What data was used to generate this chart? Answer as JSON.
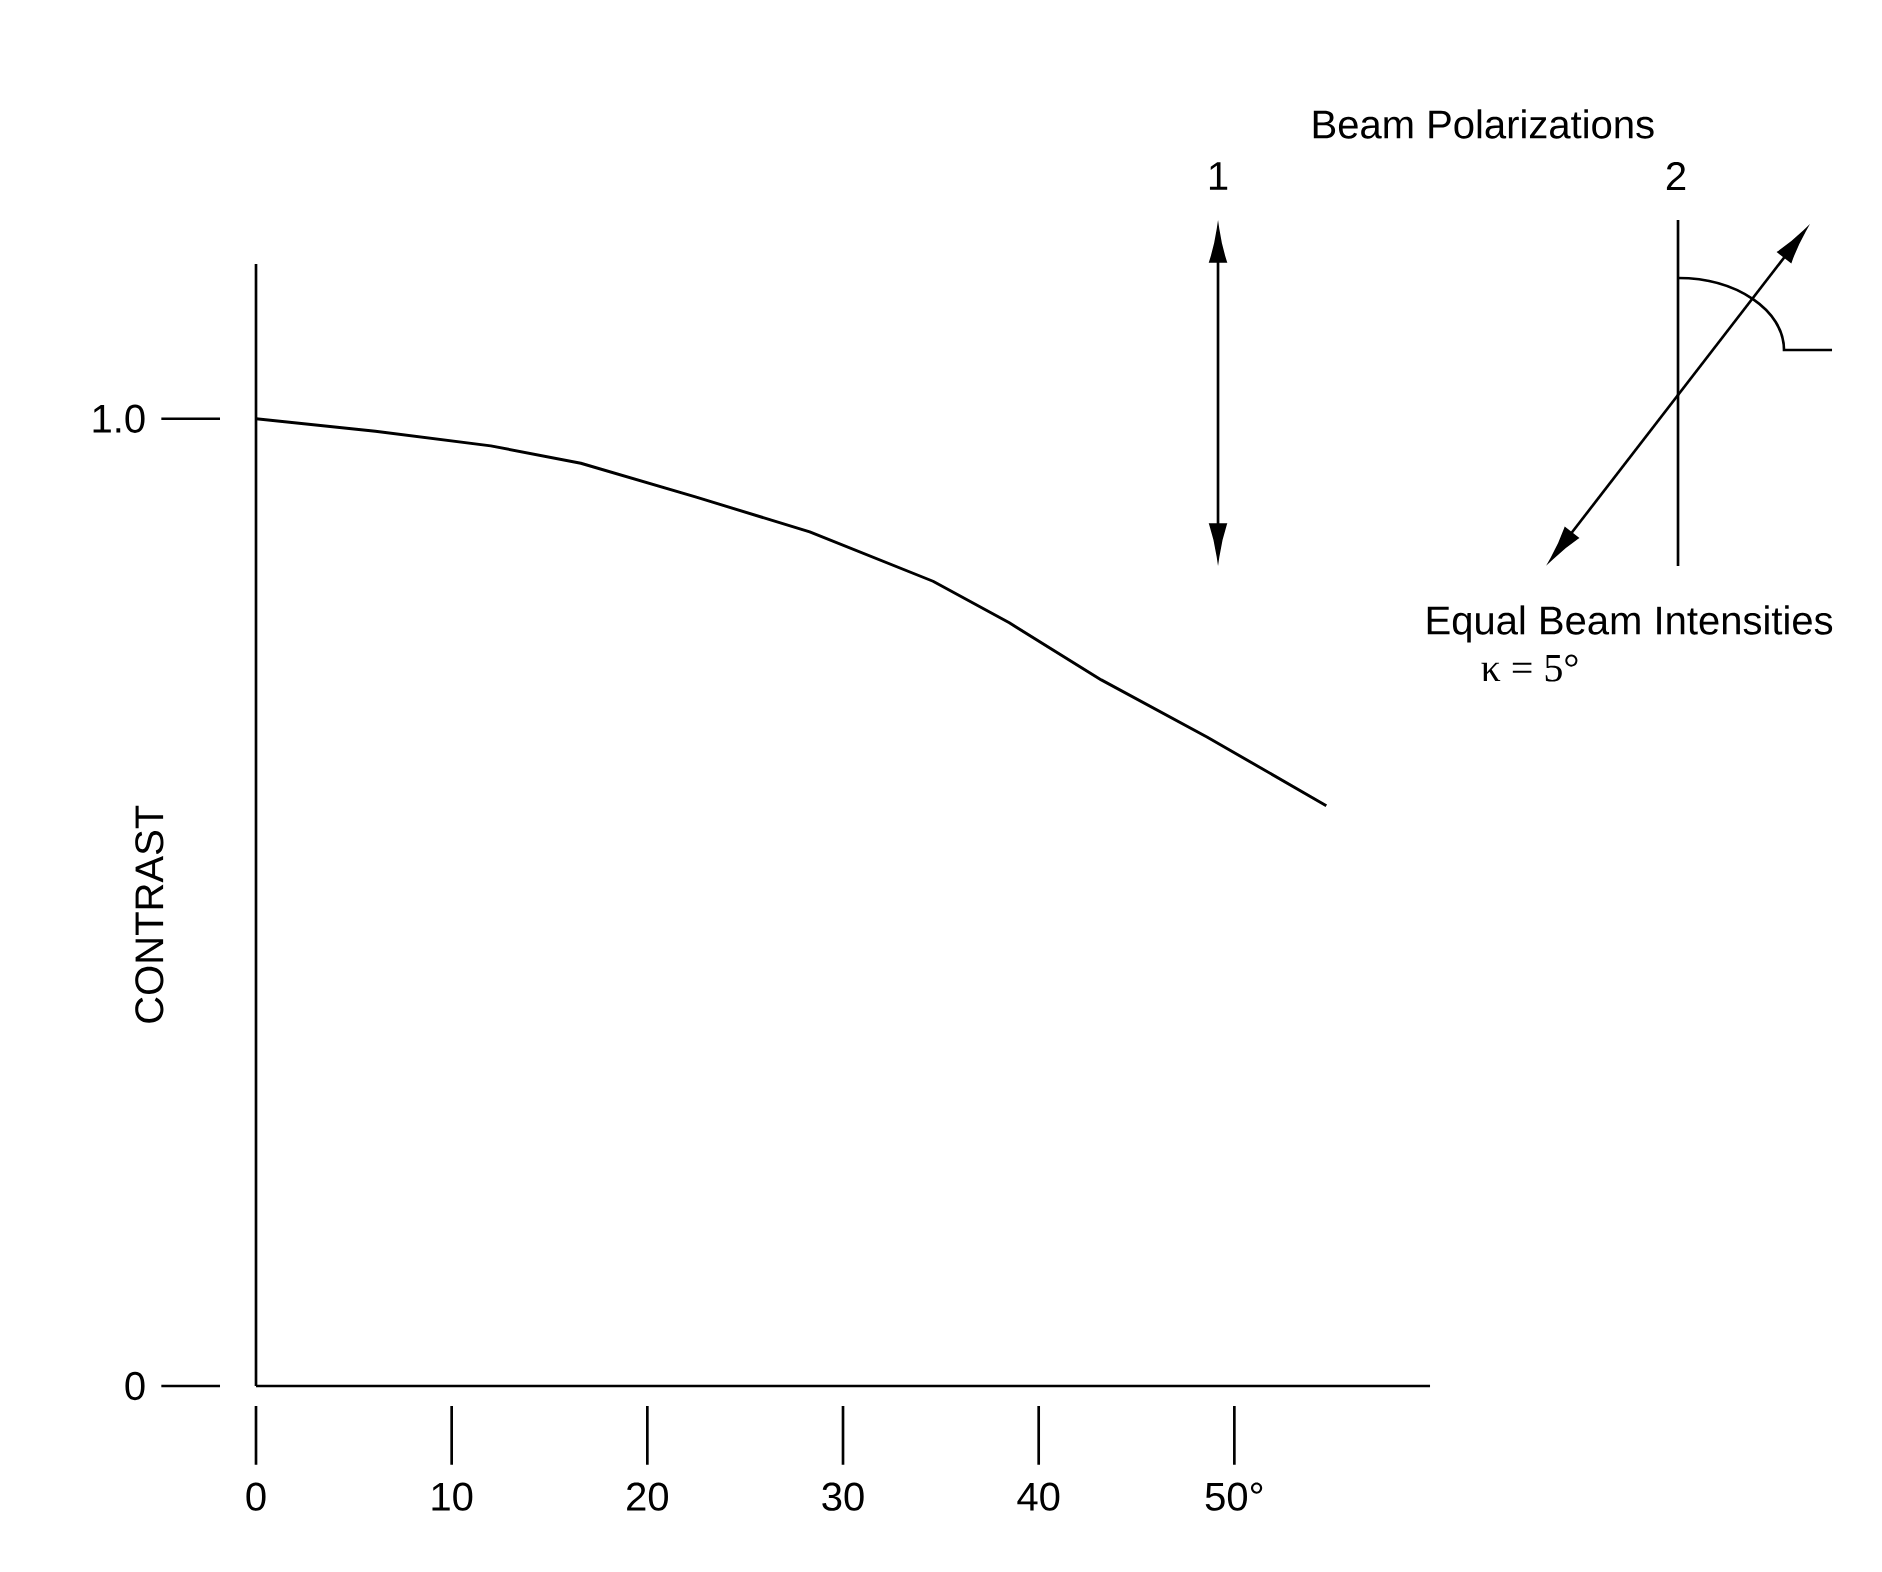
{
  "chart_data": {
    "type": "line",
    "ylabel": "CONTRAST",
    "x": [
      0,
      6.1,
      12.0,
      16.6,
      22.5,
      28.3,
      34.6,
      38.5,
      43.2,
      48.6,
      54.7
    ],
    "series": [
      {
        "color": "#000000",
        "values": [
          1.0,
          0.987,
          0.972,
          0.954,
          0.919,
          0.883,
          0.832,
          0.789,
          0.73,
          0.671,
          0.6
        ]
      }
    ],
    "xlim": [
      0,
      60
    ],
    "ylim": [
      0,
      1.16
    ],
    "xticks": [
      0,
      10,
      20,
      30,
      40,
      {
        "value": 50,
        "label": "50°"
      }
    ],
    "yticks": [
      0,
      {
        "value": 1.0,
        "label": "1.0"
      }
    ],
    "annotations": [
      "Beam Polarizations",
      "1",
      "2",
      "Equal Beam Intensities",
      "κ = 5°"
    ]
  }
}
